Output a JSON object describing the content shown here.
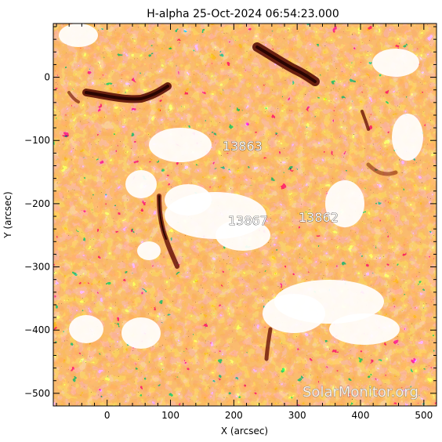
{
  "chart_data": {
    "type": "heatmap",
    "title": "H-alpha 25-Oct-2024 06:54:23.000",
    "xlabel": "X (arcsec)",
    "ylabel": "Y (arcsec)",
    "xlim": [
      -85,
      520
    ],
    "ylim": [
      -520,
      85
    ],
    "x_ticks": [
      0,
      100,
      200,
      300,
      400,
      500
    ],
    "y_ticks": [
      0,
      -100,
      -200,
      -300,
      -400,
      -500
    ],
    "colormap": [
      "#ffffff",
      "#f57a24",
      "#c85a14",
      "#7a1e0a",
      "#000000"
    ],
    "regions": [
      {
        "label": "13863",
        "x": 195,
        "y": -110
      },
      {
        "label": "13867",
        "x": 220,
        "y": -225
      },
      {
        "label": "13862",
        "x": 318,
        "y": -225
      }
    ],
    "watermark": "SolarMonitor.org"
  }
}
